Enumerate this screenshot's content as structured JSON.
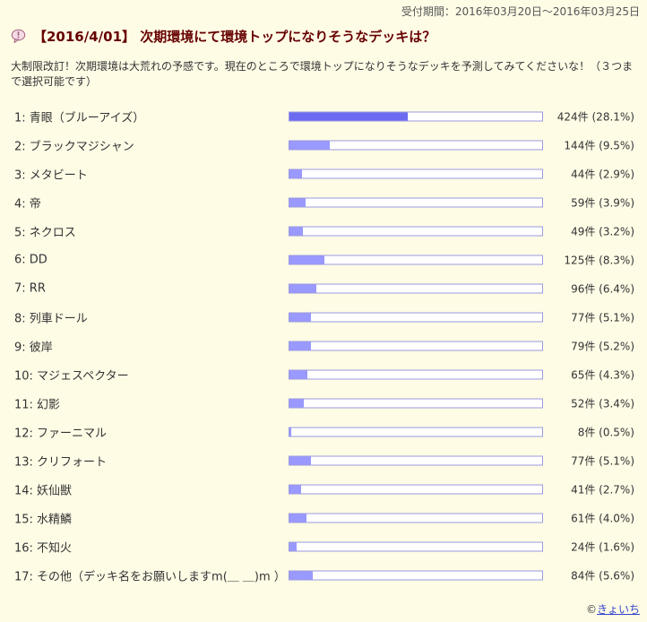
{
  "poll": {
    "period": "受付期間：2016年03月20日〜2016年03月25日",
    "title": "【2016/4/01】 次期環境にて環境トップになりそうなデッキは？",
    "description": "大制限改訂！次期環境は大荒れの予感です。現在のところで環境トップになりそうなデッキを予測してみてくださいな！（３つまで選択可能です）",
    "title_icon": "question-balloon-icon",
    "bar_color": "#9999ff",
    "top_bar_color": "#6b6bf2"
  },
  "options": [
    {
      "label": "1: 青眼（ブルーアイズ）",
      "value": "424件 (28.1%)",
      "percent": 28.1
    },
    {
      "label": "2: ブラックマジシャン",
      "value": "144件 (9.5%)",
      "percent": 9.5
    },
    {
      "label": "3: メタビート",
      "value": "44件 (2.9%)",
      "percent": 2.9
    },
    {
      "label": "4: 帝",
      "value": "59件 (3.9%)",
      "percent": 3.9
    },
    {
      "label": "5: ネクロス",
      "value": "49件 (3.2%)",
      "percent": 3.2
    },
    {
      "label": "6: DD",
      "value": "125件 (8.3%)",
      "percent": 8.3
    },
    {
      "label": "7: RR",
      "value": "96件 (6.4%)",
      "percent": 6.4
    },
    {
      "label": "8: 列車ドール",
      "value": "77件 (5.1%)",
      "percent": 5.1
    },
    {
      "label": "9: 彼岸",
      "value": "79件 (5.2%)",
      "percent": 5.2
    },
    {
      "label": "10: マジェスペクター",
      "value": "65件 (4.3%)",
      "percent": 4.3
    },
    {
      "label": "11: 幻影",
      "value": "52件 (3.4%)",
      "percent": 3.4
    },
    {
      "label": "12: ファーニマル",
      "value": "8件 (0.5%)",
      "percent": 0.5
    },
    {
      "label": "13: クリフォート",
      "value": "77件 (5.1%)",
      "percent": 5.1
    },
    {
      "label": "14: 妖仙獣",
      "value": "41件 (2.7%)",
      "percent": 2.7
    },
    {
      "label": "15: 水精鱗",
      "value": "61件 (4.0%)",
      "percent": 4.0
    },
    {
      "label": "16: 不知火",
      "value": "24件 (1.6%)",
      "percent": 1.6
    },
    {
      "label": "17: その他（デッキ名をお願いしますm(＿ ＿)m ）",
      "value": "84件 (5.6%)",
      "percent": 5.6
    }
  ],
  "footer": {
    "copyright": "©",
    "author": "きょいち"
  }
}
